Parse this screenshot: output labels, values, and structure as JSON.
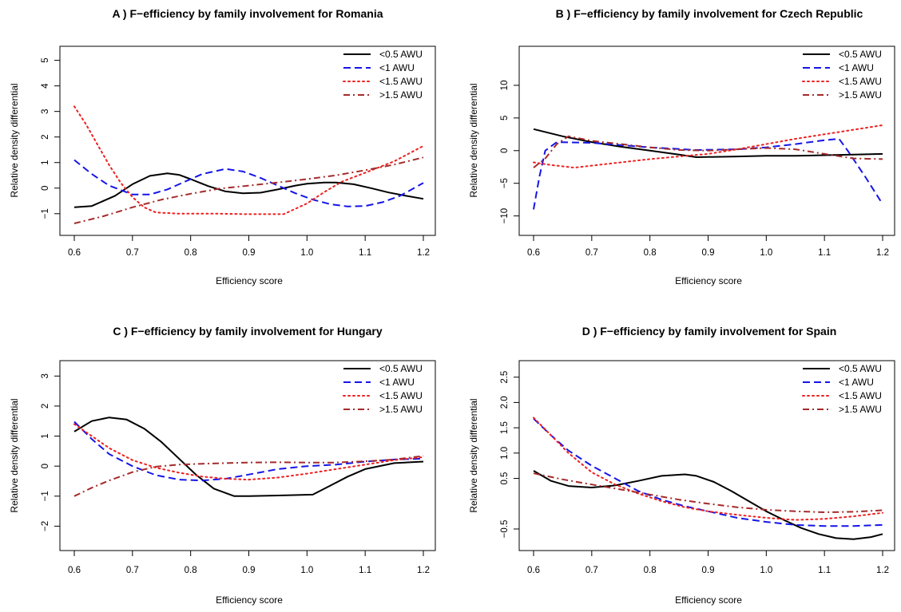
{
  "chart_data": [
    {
      "type": "line",
      "title": "A ) F−efficiency by family involvement for  Romania",
      "xlabel": "Efficiency score",
      "ylabel": "Relative density differential",
      "xlim": [
        0.6,
        1.2
      ],
      "ylim": [
        -1.6,
        5.3
      ],
      "xticks": [
        0.6,
        0.7,
        0.8,
        0.9,
        1.0,
        1.1,
        1.2
      ],
      "xtick_labels": [
        "0.6",
        "0.7",
        "0.8",
        "0.9",
        "1.0",
        "1.1",
        "1.2"
      ],
      "yticks": [
        -1,
        0,
        1,
        2,
        3,
        4,
        5
      ],
      "ytick_labels": [
        "−1",
        "0",
        "1",
        "2",
        "3",
        "4",
        "5"
      ],
      "legend_position": "top-right",
      "series": [
        {
          "name": "<0.5 AWU",
          "color": "#000000",
          "style": "solid",
          "x": [
            0.6,
            0.63,
            0.67,
            0.7,
            0.73,
            0.76,
            0.78,
            0.8,
            0.83,
            0.86,
            0.89,
            0.92,
            0.95,
            0.98,
            1.0,
            1.03,
            1.05,
            1.08,
            1.11,
            1.14,
            1.17,
            1.2
          ],
          "y": [
            -0.75,
            -0.7,
            -0.3,
            0.15,
            0.48,
            0.58,
            0.52,
            0.35,
            0.08,
            -0.13,
            -0.2,
            -0.18,
            -0.05,
            0.1,
            0.17,
            0.22,
            0.22,
            0.15,
            0.0,
            -0.17,
            -0.3,
            -0.42
          ]
        },
        {
          "name": "<1 AWU",
          "color": "#1515e8",
          "style": "dashed",
          "x": [
            0.6,
            0.63,
            0.66,
            0.7,
            0.73,
            0.76,
            0.79,
            0.82,
            0.86,
            0.89,
            0.92,
            0.95,
            0.98,
            1.01,
            1.04,
            1.07,
            1.1,
            1.13,
            1.16,
            1.2
          ],
          "y": [
            1.1,
            0.55,
            0.1,
            -0.25,
            -0.25,
            -0.05,
            0.25,
            0.55,
            0.75,
            0.65,
            0.4,
            0.1,
            -0.2,
            -0.45,
            -0.63,
            -0.72,
            -0.7,
            -0.55,
            -0.3,
            0.2
          ]
        },
        {
          "name": "<1.5 AWU",
          "color": "#ee2020",
          "style": "dotted",
          "x": [
            0.6,
            0.62,
            0.64,
            0.66,
            0.68,
            0.7,
            0.72,
            0.74,
            0.78,
            0.85,
            0.9,
            0.96,
            1.0,
            1.03,
            1.06,
            1.1,
            1.15,
            1.2
          ],
          "y": [
            3.2,
            2.5,
            1.7,
            0.9,
            0.2,
            -0.35,
            -0.75,
            -0.95,
            -1.0,
            -1.0,
            -1.02,
            -1.02,
            -0.6,
            -0.15,
            0.25,
            0.6,
            1.05,
            1.65
          ]
        },
        {
          "name": ">1.5 AWU",
          "color": "#a52a2a",
          "style": "dashdot",
          "x": [
            0.6,
            0.65,
            0.7,
            0.75,
            0.8,
            0.85,
            0.9,
            0.95,
            1.0,
            1.05,
            1.1,
            1.15,
            1.2
          ],
          "y": [
            -1.38,
            -1.1,
            -0.75,
            -0.45,
            -0.22,
            -0.02,
            0.1,
            0.22,
            0.35,
            0.5,
            0.7,
            0.92,
            1.2
          ]
        }
      ]
    },
    {
      "type": "line",
      "title": "B ) F−efficiency by family involvement for  Czech Republic",
      "xlabel": "Efficiency score",
      "ylabel": "Relative density differential",
      "xlim": [
        0.6,
        1.2
      ],
      "ylim": [
        -12,
        15
      ],
      "xticks": [
        0.6,
        0.7,
        0.8,
        0.9,
        1.0,
        1.1,
        1.2
      ],
      "xtick_labels": [
        "0.6",
        "0.7",
        "0.8",
        "0.9",
        "1.0",
        "1.1",
        "1.2"
      ],
      "yticks": [
        -10,
        -5,
        0,
        5,
        10
      ],
      "ytick_labels": [
        "−10",
        "−5",
        "0",
        "5",
        "10"
      ],
      "legend_position": "top-right",
      "series": [
        {
          "name": "<0.5 AWU",
          "color": "#000000",
          "style": "solid",
          "x": [
            0.6,
            0.65,
            0.7,
            0.75,
            0.8,
            0.85,
            0.88,
            0.95,
            1.0,
            1.05,
            1.1,
            1.15,
            1.2
          ],
          "y": [
            3.3,
            2.2,
            1.3,
            0.6,
            0.0,
            -0.6,
            -1.0,
            -0.9,
            -0.8,
            -0.8,
            -0.7,
            -0.6,
            -0.5
          ]
        },
        {
          "name": "<1 AWU",
          "color": "#1515e8",
          "style": "dashed",
          "x": [
            0.6,
            0.61,
            0.62,
            0.64,
            0.7,
            0.8,
            0.88,
            0.95,
            1.0,
            1.05,
            1.1,
            1.125,
            1.14,
            1.17,
            1.2
          ],
          "y": [
            -9.0,
            -4.0,
            0.0,
            1.3,
            1.2,
            0.5,
            0.1,
            0.2,
            0.5,
            1.0,
            1.6,
            1.8,
            0.0,
            -4.0,
            -8.2
          ]
        },
        {
          "name": "<1.5 AWU",
          "color": "#ee2020",
          "style": "dotted",
          "x": [
            0.6,
            0.63,
            0.67,
            0.7,
            0.75,
            0.8,
            0.85,
            0.9,
            0.95,
            1.0,
            1.05,
            1.1,
            1.15,
            1.2
          ],
          "y": [
            -1.8,
            -2.2,
            -2.6,
            -2.3,
            -1.8,
            -1.3,
            -0.9,
            -0.5,
            0.2,
            1.0,
            1.8,
            2.5,
            3.2,
            3.9
          ]
        },
        {
          "name": ">1.5 AWU",
          "color": "#a52a2a",
          "style": "dashdot",
          "x": [
            0.6,
            0.62,
            0.64,
            0.66,
            0.7,
            0.75,
            0.8,
            0.85,
            0.9,
            0.95,
            1.0,
            1.05,
            1.1,
            1.15,
            1.2
          ],
          "y": [
            -2.6,
            -1.2,
            1.0,
            2.2,
            1.5,
            1.0,
            0.5,
            0.1,
            0.0,
            0.2,
            0.4,
            0.2,
            -0.5,
            -1.2,
            -1.3
          ]
        }
      ]
    },
    {
      "type": "line",
      "title": "C ) F−efficiency by family involvement for  Hungary",
      "xlabel": "Efficiency score",
      "ylabel": "Relative density differential",
      "xlim": [
        0.6,
        1.2
      ],
      "ylim": [
        -2.6,
        3.3
      ],
      "xticks": [
        0.6,
        0.7,
        0.8,
        0.9,
        1.0,
        1.1,
        1.2
      ],
      "xtick_labels": [
        "0.6",
        "0.7",
        "0.8",
        "0.9",
        "1.0",
        "1.1",
        "1.2"
      ],
      "yticks": [
        -2,
        -1,
        0,
        1,
        2,
        3
      ],
      "ytick_labels": [
        "−2",
        "−1",
        "0",
        "1",
        "2",
        "3"
      ],
      "legend_position": "top-right",
      "series": [
        {
          "name": "<0.5 AWU",
          "color": "#000000",
          "style": "solid",
          "x": [
            0.6,
            0.63,
            0.66,
            0.69,
            0.72,
            0.75,
            0.78,
            0.81,
            0.84,
            0.875,
            0.9,
            0.95,
            1.01,
            1.04,
            1.07,
            1.1,
            1.15,
            1.2
          ],
          "y": [
            1.15,
            1.5,
            1.62,
            1.55,
            1.25,
            0.8,
            0.25,
            -0.3,
            -0.75,
            -1.0,
            -1.0,
            -0.98,
            -0.95,
            -0.65,
            -0.35,
            -0.1,
            0.1,
            0.15
          ]
        },
        {
          "name": "<1 AWU",
          "color": "#1515e8",
          "style": "dashed",
          "x": [
            0.6,
            0.63,
            0.66,
            0.7,
            0.74,
            0.78,
            0.82,
            0.86,
            0.9,
            0.95,
            1.0,
            1.05,
            1.1,
            1.15,
            1.2
          ],
          "y": [
            1.48,
            0.9,
            0.4,
            0.0,
            -0.3,
            -0.45,
            -0.48,
            -0.42,
            -0.28,
            -0.1,
            0.0,
            0.05,
            0.15,
            0.22,
            0.25
          ]
        },
        {
          "name": "<1.5 AWU",
          "color": "#ee2020",
          "style": "dotted",
          "x": [
            0.6,
            0.63,
            0.66,
            0.7,
            0.74,
            0.78,
            0.82,
            0.86,
            0.9,
            0.95,
            1.0,
            1.05,
            1.1,
            1.15,
            1.2
          ],
          "y": [
            1.4,
            1.0,
            0.6,
            0.2,
            -0.05,
            -0.22,
            -0.35,
            -0.42,
            -0.45,
            -0.38,
            -0.25,
            -0.1,
            0.05,
            0.2,
            0.3
          ]
        },
        {
          "name": ">1.5 AWU",
          "color": "#a52a2a",
          "style": "dashdot",
          "x": [
            0.6,
            0.63,
            0.66,
            0.7,
            0.74,
            0.78,
            0.82,
            0.86,
            0.9,
            0.95,
            1.0,
            1.05,
            1.1,
            1.15,
            1.2
          ],
          "y": [
            -1.0,
            -0.72,
            -0.48,
            -0.2,
            -0.02,
            0.05,
            0.08,
            0.1,
            0.12,
            0.13,
            0.12,
            0.12,
            0.16,
            0.22,
            0.34
          ]
        }
      ]
    },
    {
      "type": "line",
      "title": "D ) F−efficiency by family involvement for  Spain",
      "xlabel": "Efficiency score",
      "ylabel": "Relative density differential",
      "xlim": [
        0.6,
        1.2
      ],
      "ylim": [
        -0.8,
        2.7
      ],
      "xticks": [
        0.6,
        0.7,
        0.8,
        0.9,
        1.0,
        1.1,
        1.2
      ],
      "xtick_labels": [
        "0.6",
        "0.7",
        "0.8",
        "0.9",
        "1.0",
        "1.1",
        "1.2"
      ],
      "yticks": [
        -0.5,
        0.5,
        1.0,
        1.5,
        2.0,
        2.5
      ],
      "ytick_labels": [
        "−0.5",
        "0.5",
        "1.0",
        "1.5",
        "2.0",
        "2.5"
      ],
      "legend_position": "top-right",
      "series": [
        {
          "name": "<0.5 AWU",
          "color": "#000000",
          "style": "solid",
          "x": [
            0.6,
            0.63,
            0.66,
            0.7,
            0.74,
            0.78,
            0.82,
            0.86,
            0.88,
            0.91,
            0.94,
            0.97,
            1.0,
            1.03,
            1.06,
            1.09,
            1.12,
            1.15,
            1.18,
            1.2
          ],
          "y": [
            0.65,
            0.45,
            0.35,
            0.32,
            0.36,
            0.45,
            0.55,
            0.58,
            0.55,
            0.43,
            0.25,
            0.05,
            -0.15,
            -0.32,
            -0.48,
            -0.6,
            -0.68,
            -0.7,
            -0.66,
            -0.6
          ]
        },
        {
          "name": "<1 AWU",
          "color": "#1515e8",
          "style": "dashed",
          "x": [
            0.6,
            0.63,
            0.66,
            0.7,
            0.74,
            0.78,
            0.82,
            0.86,
            0.9,
            0.95,
            1.0,
            1.05,
            1.1,
            1.15,
            1.2
          ],
          "y": [
            1.68,
            1.35,
            1.05,
            0.75,
            0.5,
            0.25,
            0.08,
            -0.05,
            -0.15,
            -0.28,
            -0.36,
            -0.42,
            -0.44,
            -0.44,
            -0.42
          ]
        },
        {
          "name": "<1.5 AWU",
          "color": "#ee2020",
          "style": "dotted",
          "x": [
            0.6,
            0.63,
            0.66,
            0.7,
            0.74,
            0.78,
            0.82,
            0.86,
            0.9,
            0.95,
            1.0,
            1.05,
            1.1,
            1.15,
            1.2
          ],
          "y": [
            1.7,
            1.35,
            1.0,
            0.62,
            0.38,
            0.2,
            0.05,
            -0.07,
            -0.15,
            -0.22,
            -0.28,
            -0.32,
            -0.3,
            -0.25,
            -0.18
          ]
        },
        {
          "name": ">1.5 AWU",
          "color": "#a52a2a",
          "style": "dashdot",
          "x": [
            0.6,
            0.65,
            0.7,
            0.75,
            0.8,
            0.85,
            0.9,
            0.95,
            1.0,
            1.05,
            1.1,
            1.15,
            1.2
          ],
          "y": [
            0.6,
            0.48,
            0.38,
            0.28,
            0.18,
            0.08,
            0.0,
            -0.07,
            -0.12,
            -0.15,
            -0.17,
            -0.16,
            -0.13
          ]
        }
      ]
    }
  ]
}
